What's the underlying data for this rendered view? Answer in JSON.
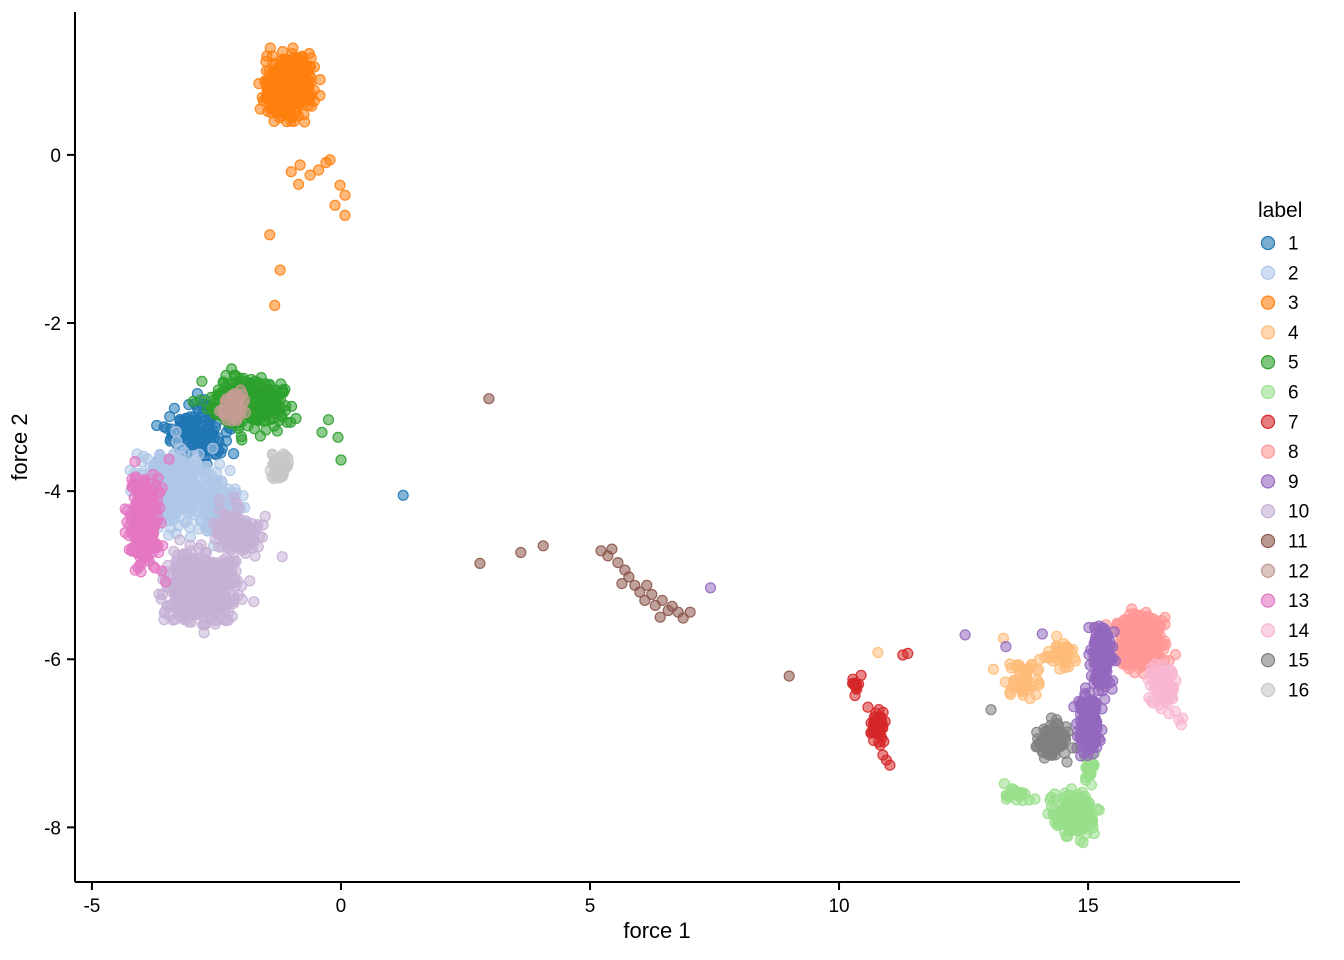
{
  "figure": {
    "background": "#ffffff",
    "axis_color": "#000000",
    "text_color": "#000000"
  },
  "chart_data": {
    "type": "scatter",
    "title": "",
    "xlabel": "force 1",
    "ylabel": "force 2",
    "legend_title": "label",
    "legend_position": "right",
    "grid": false,
    "xlim": [
      -5.34,
      18.05
    ],
    "ylim": [
      -8.65,
      1.7
    ],
    "xticks": [
      -5,
      0,
      5,
      10,
      15
    ],
    "yticks": [
      0,
      -2,
      -4,
      -6,
      -8
    ],
    "point_alpha": 0.55,
    "series": [
      {
        "label": "1",
        "color": "#1f77b4",
        "clusters": [
          {
            "cx": -2.85,
            "cy": -3.3,
            "rx": 0.7,
            "ry": 0.35,
            "n": 130
          }
        ],
        "points": [
          [
            1.25,
            -4.05
          ]
        ]
      },
      {
        "label": "2",
        "color": "#aec7e8",
        "clusters": [
          {
            "cx": -3.35,
            "cy": -3.95,
            "rx": 0.75,
            "ry": 0.45,
            "n": 420
          },
          {
            "cx": -2.45,
            "cy": -4.2,
            "rx": 0.45,
            "ry": 0.35,
            "n": 110
          }
        ],
        "points": []
      },
      {
        "label": "3",
        "color": "#ff7f0e",
        "clusters": [
          {
            "cx": -1.02,
            "cy": 0.82,
            "rx": 0.5,
            "ry": 0.33,
            "n": 520
          }
        ],
        "points": [
          [
            -0.82,
            -0.12
          ],
          [
            -0.62,
            -0.24
          ],
          [
            -0.22,
            -0.06
          ],
          [
            -0.02,
            -0.36
          ],
          [
            0.08,
            -0.48
          ],
          [
            -0.12,
            -0.6
          ],
          [
            0.08,
            -0.72
          ],
          [
            -0.85,
            -0.35
          ],
          [
            -1.43,
            -0.95
          ],
          [
            -1.22,
            -1.37
          ],
          [
            -1.33,
            -1.79
          ],
          [
            -0.45,
            -0.18
          ],
          [
            -0.3,
            -0.09
          ],
          [
            -1.0,
            -0.2
          ]
        ]
      },
      {
        "label": "4",
        "color": "#ffbb78",
        "clusters": [
          {
            "cx": 13.7,
            "cy": -6.25,
            "rx": 0.32,
            "ry": 0.22,
            "n": 45
          },
          {
            "cx": 14.45,
            "cy": -5.95,
            "rx": 0.35,
            "ry": 0.2,
            "n": 40
          }
        ],
        "points": [
          [
            10.78,
            -5.92
          ],
          [
            13.1,
            -6.12
          ],
          [
            13.3,
            -5.75
          ]
        ]
      },
      {
        "label": "5",
        "color": "#2ca02c",
        "clusters": [
          {
            "cx": -1.85,
            "cy": -2.95,
            "rx": 0.8,
            "ry": 0.3,
            "n": 280
          }
        ],
        "points": [
          [
            -0.25,
            -3.15
          ],
          [
            -0.06,
            -3.36
          ],
          [
            0.0,
            -3.63
          ],
          [
            -0.38,
            -3.3
          ]
        ]
      },
      {
        "label": "6",
        "color": "#98df8a",
        "clusters": [
          {
            "cx": 14.7,
            "cy": -7.85,
            "rx": 0.4,
            "ry": 0.25,
            "n": 140
          },
          {
            "cx": 13.6,
            "cy": -7.62,
            "rx": 0.25,
            "ry": 0.1,
            "n": 18
          },
          {
            "cx": 15.02,
            "cy": -7.3,
            "rx": 0.1,
            "ry": 0.22,
            "n": 28
          }
        ],
        "points": [
          [
            13.32,
            -7.48
          ],
          [
            14.9,
            -8.18
          ]
        ]
      },
      {
        "label": "7",
        "color": "#d62728",
        "clusters": [
          {
            "cx": 10.35,
            "cy": -6.33,
            "rx": 0.13,
            "ry": 0.12,
            "n": 12
          },
          {
            "cx": 10.78,
            "cy": -6.82,
            "rx": 0.14,
            "ry": 0.22,
            "n": 45
          }
        ],
        "points": [
          [
            11.28,
            -5.95
          ],
          [
            11.38,
            -5.93
          ],
          [
            10.95,
            -7.2
          ],
          [
            11.02,
            -7.26
          ],
          [
            10.88,
            -7.14
          ],
          [
            10.58,
            -6.57
          ]
        ]
      },
      {
        "label": "8",
        "color": "#ff9896",
        "clusters": [
          {
            "cx": 16.05,
            "cy": -5.78,
            "rx": 0.5,
            "ry": 0.33,
            "n": 330
          }
        ],
        "points": []
      },
      {
        "label": "9",
        "color": "#9467bd",
        "clusters": [
          {
            "cx": 15.25,
            "cy": -5.98,
            "rx": 0.25,
            "ry": 0.38,
            "n": 150
          },
          {
            "cx": 15.0,
            "cy": -6.75,
            "rx": 0.22,
            "ry": 0.38,
            "n": 150
          }
        ],
        "points": [
          [
            12.53,
            -5.71
          ],
          [
            13.35,
            -5.85
          ],
          [
            14.08,
            -5.7
          ],
          [
            7.42,
            -5.15
          ]
        ]
      },
      {
        "label": "10",
        "color": "#c5b0d5",
        "clusters": [
          {
            "cx": -2.8,
            "cy": -5.15,
            "rx": 0.7,
            "ry": 0.45,
            "n": 480
          },
          {
            "cx": -2.05,
            "cy": -4.5,
            "rx": 0.45,
            "ry": 0.3,
            "n": 140
          }
        ],
        "points": [
          [
            -1.18,
            -4.78
          ],
          [
            -1.52,
            -4.3
          ]
        ]
      },
      {
        "label": "11",
        "color": "#8c564b",
        "clusters": [],
        "points": [
          [
            2.97,
            -2.9
          ],
          [
            2.79,
            -4.86
          ],
          [
            3.61,
            -4.73
          ],
          [
            4.06,
            -4.65
          ],
          [
            5.22,
            -4.71
          ],
          [
            5.36,
            -4.77
          ],
          [
            5.44,
            -4.69
          ],
          [
            5.56,
            -4.85
          ],
          [
            5.7,
            -4.94
          ],
          [
            5.78,
            -5.02
          ],
          [
            5.64,
            -5.1
          ],
          [
            5.9,
            -5.12
          ],
          [
            6.0,
            -5.2
          ],
          [
            6.1,
            -5.3
          ],
          [
            6.24,
            -5.23
          ],
          [
            6.31,
            -5.36
          ],
          [
            6.45,
            -5.3
          ],
          [
            6.57,
            -5.42
          ],
          [
            6.65,
            -5.37
          ],
          [
            6.77,
            -5.44
          ],
          [
            6.87,
            -5.51
          ],
          [
            7.01,
            -5.44
          ],
          [
            6.41,
            -5.5
          ],
          [
            6.14,
            -5.12
          ],
          [
            9.0,
            -6.2
          ]
        ]
      },
      {
        "label": "12",
        "color": "#c49c94",
        "clusters": [
          {
            "cx": -2.15,
            "cy": -2.97,
            "rx": 0.28,
            "ry": 0.2,
            "n": 50
          }
        ],
        "points": []
      },
      {
        "label": "13",
        "color": "#e377c2",
        "clusters": [
          {
            "cx": -3.95,
            "cy": -4.35,
            "rx": 0.3,
            "ry": 0.5,
            "n": 290
          }
        ],
        "points": [
          [
            -3.45,
            -3.62
          ],
          [
            -3.6,
            -4.95
          ],
          [
            -3.52,
            -5.08
          ]
        ]
      },
      {
        "label": "14",
        "color": "#f7b6d2",
        "clusters": [
          {
            "cx": 16.5,
            "cy": -6.35,
            "rx": 0.28,
            "ry": 0.25,
            "n": 75
          }
        ],
        "points": [
          [
            16.82,
            -6.72
          ],
          [
            16.87,
            -6.78
          ],
          [
            16.75,
            -6.62
          ],
          [
            16.9,
            -6.7
          ]
        ]
      },
      {
        "label": "15",
        "color": "#7f7f7f",
        "clusters": [
          {
            "cx": 14.3,
            "cy": -6.97,
            "rx": 0.35,
            "ry": 0.2,
            "n": 115
          }
        ],
        "points": [
          [
            13.05,
            -6.6
          ]
        ]
      },
      {
        "label": "16",
        "color": "#c7c7c7",
        "clusters": [
          {
            "cx": -1.25,
            "cy": -3.72,
            "rx": 0.22,
            "ry": 0.16,
            "n": 40
          }
        ],
        "points": []
      }
    ]
  }
}
